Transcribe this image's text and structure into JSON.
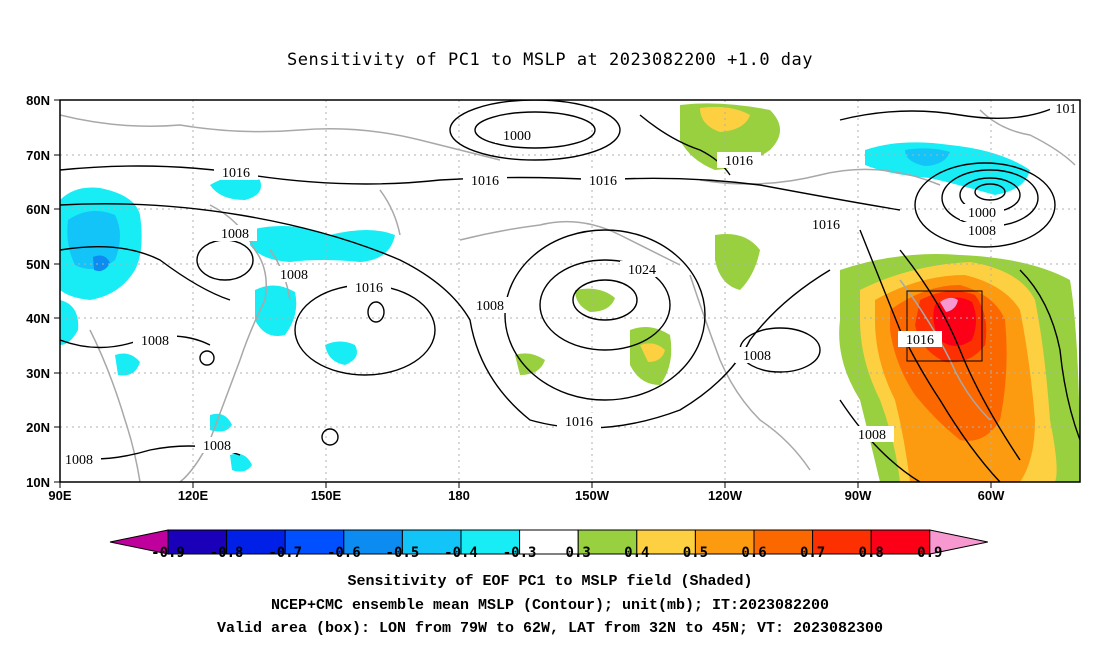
{
  "title": "Sensitivity of PC1 to MSLP at 2023082200 +1.0 day",
  "lat_labels": [
    "80N",
    "70N",
    "60N",
    "50N",
    "40N",
    "30N",
    "20N",
    "10N"
  ],
  "lon_labels": [
    "90E",
    "120E",
    "150E",
    "180",
    "150W",
    "120W",
    "90W",
    "60W"
  ],
  "colorbar": {
    "ticks": [
      "-0.9",
      "-0.8",
      "-0.7",
      "-0.6",
      "-0.5",
      "-0.4",
      "-0.3",
      "0.3",
      "0.4",
      "0.5",
      "0.6",
      "0.7",
      "0.8",
      "0.9"
    ],
    "colors": [
      "#c0009c",
      "#1a00b8",
      "#0020e8",
      "#0050ff",
      "#0c8cf0",
      "#12c4f8",
      "#18ecf4",
      "#ffffff",
      "#98d040",
      "#fcd040",
      "#fc9a10",
      "#fc6800",
      "#fc3000",
      "#fc0018",
      "#f898d0"
    ]
  },
  "contour_labels": {
    "c1000_a": "1000",
    "c1016_a": "1016",
    "c1016_b": "1016",
    "c1016_c": "1016",
    "c1024": "1024",
    "c1016_d": "1016",
    "c1016_e": "1016",
    "c1000_b": "1000",
    "c1008_a": "1008",
    "c1008_b": "1008",
    "c1008_c": "1008",
    "c1016_f": "1016",
    "c1008_d": "1008",
    "c1008_e": "1008",
    "c1016_g": "1016",
    "c1008_f": "1008",
    "c1008_g": "1008",
    "c1008_h": "1008",
    "c1008_i": "1008",
    "c1016_h": "1016",
    "c_edge": "101"
  },
  "captions": {
    "line1": "Sensitivity of EOF PC1 to MSLP field (Shaded)",
    "line2": "NCEP+CMC ensemble mean MSLP (Contour); unit(mb); IT:2023082200",
    "line3": "Valid area (box): LON from 79W to 62W, LAT from 32N to 45N; VT: 2023082300"
  }
}
